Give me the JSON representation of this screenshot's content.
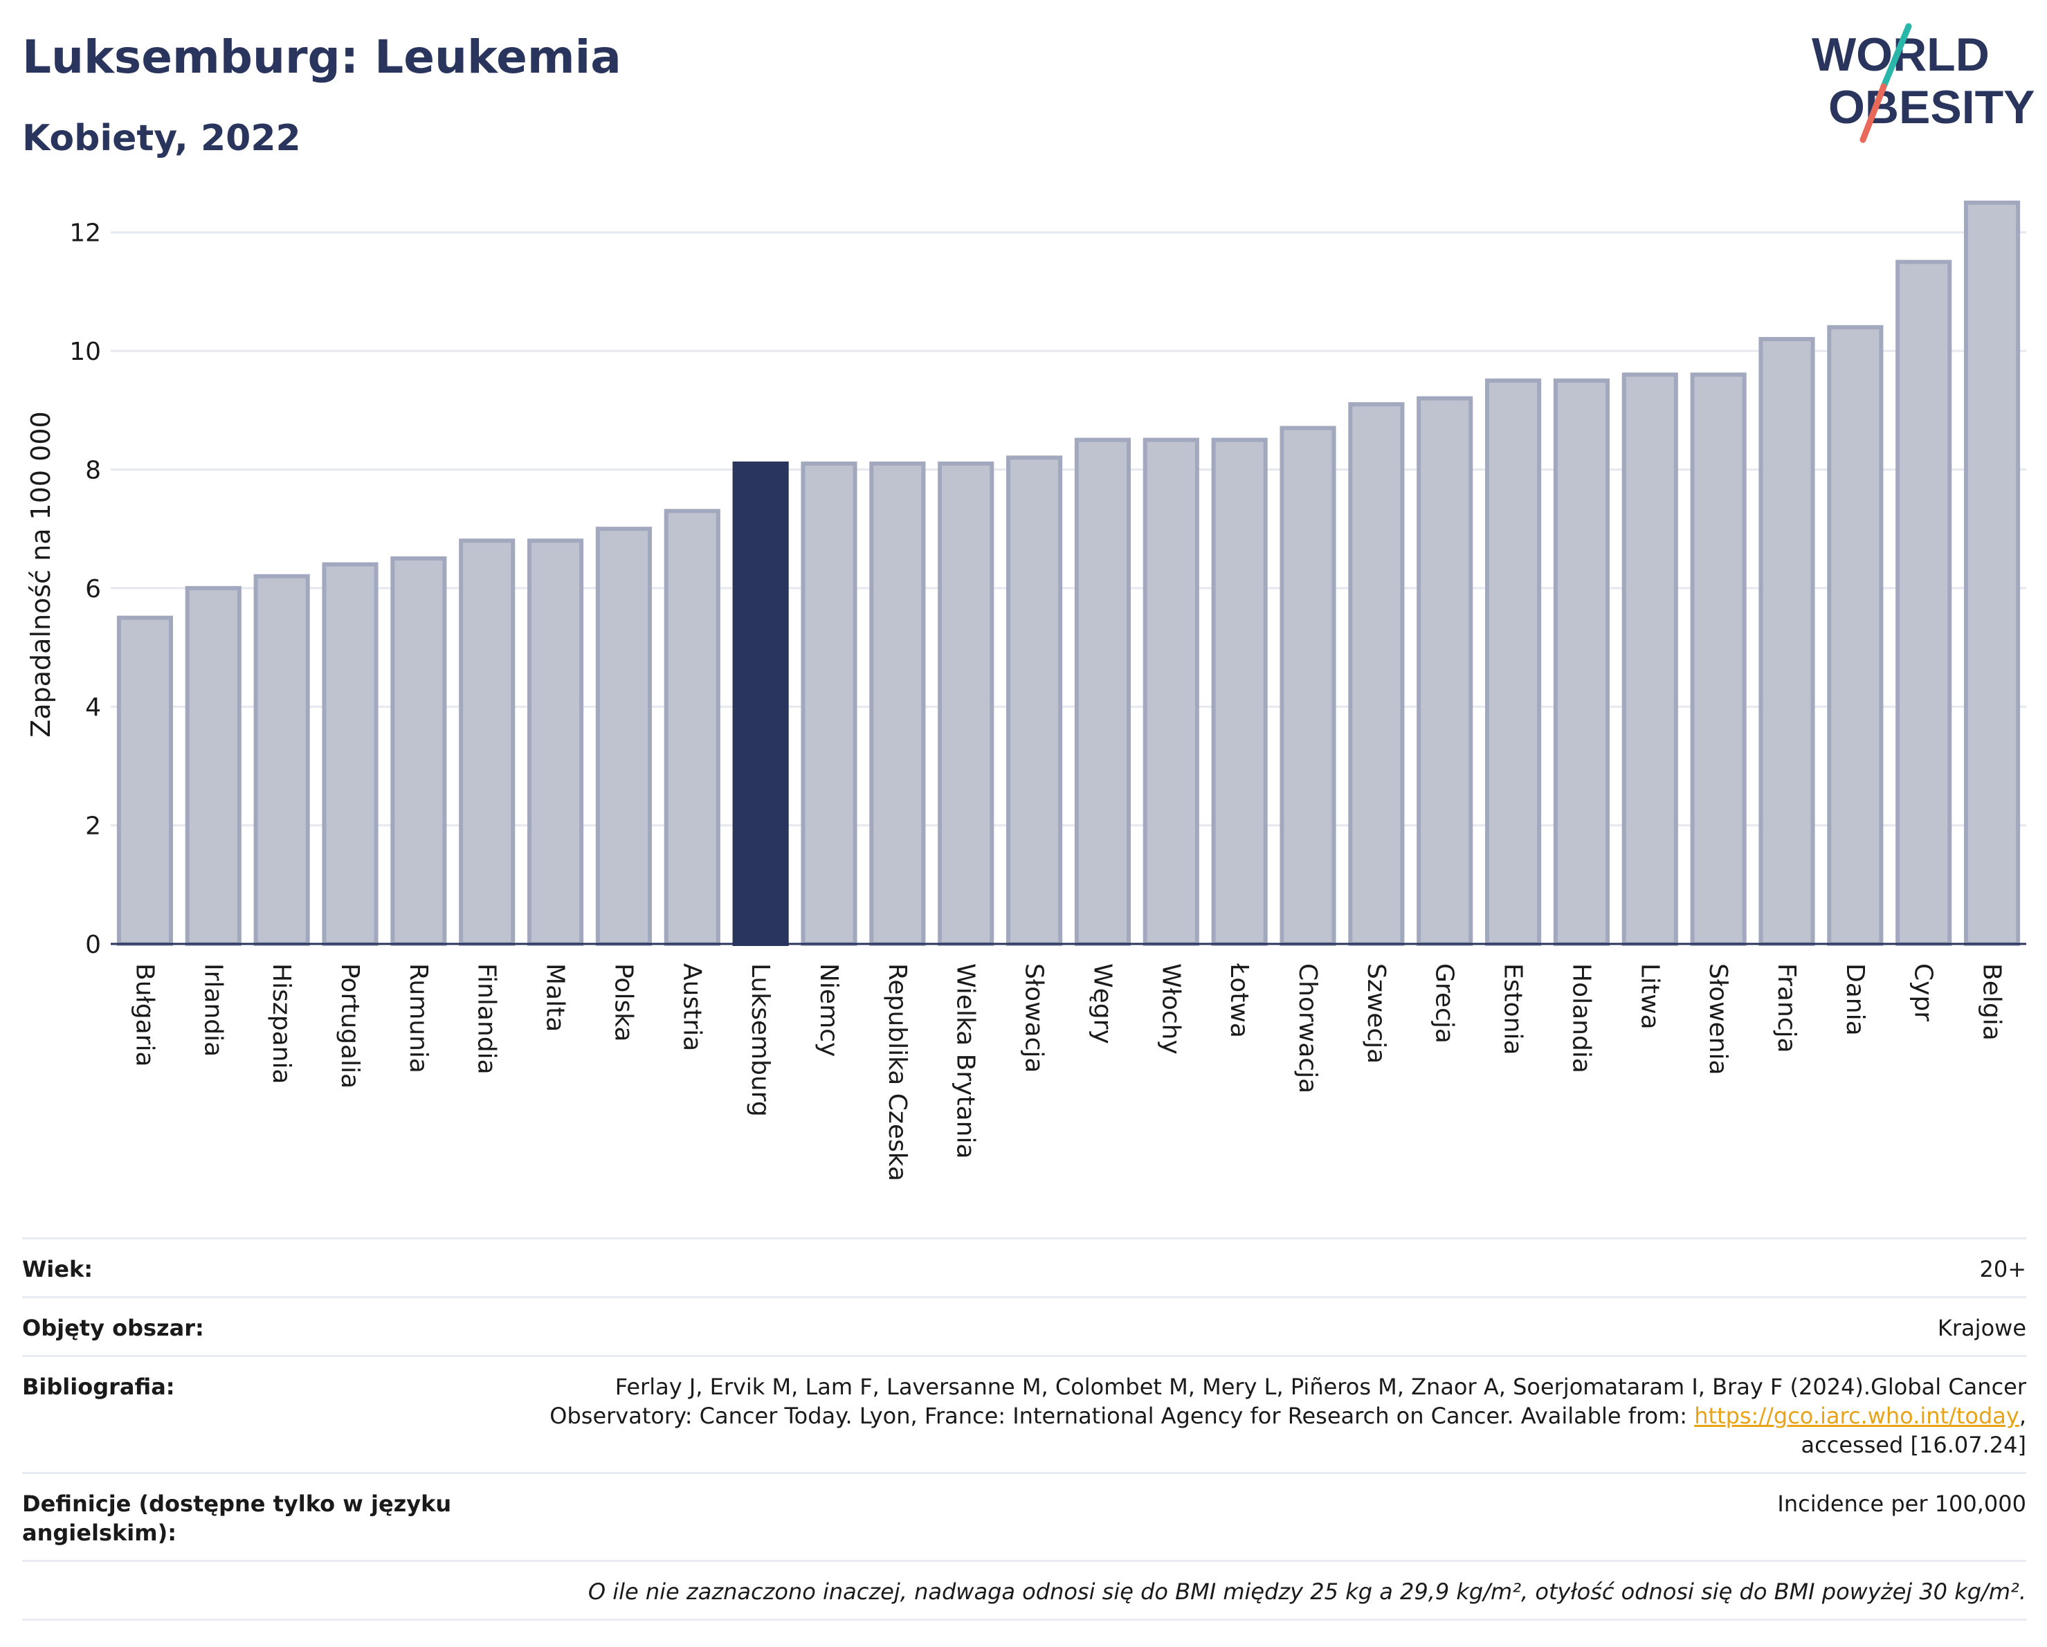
{
  "header": {
    "title": "Luksemburg: Leukemia",
    "subtitle": "Kobiety, 2022"
  },
  "logo": {
    "line1": "WORLD",
    "line2": "OBESITY",
    "colors": {
      "text": "#2a355d",
      "slash_top": "#2ab6a9",
      "slash_bottom": "#e8685a"
    }
  },
  "chart_data": {
    "type": "bar",
    "ylabel": "Zapadalność na 100 000",
    "xlabel": "",
    "ylim": [
      0,
      13
    ],
    "yticks": [
      0,
      2,
      4,
      6,
      8,
      10,
      12
    ],
    "grid": true,
    "categories": [
      "Bułgaria",
      "Irlandia",
      "Hiszpania",
      "Portugalia",
      "Rumunia",
      "Finlandia",
      "Malta",
      "Polska",
      "Austria",
      "Luksemburg",
      "Niemcy",
      "Republika Czeska",
      "Wielka Brytania",
      "Słowacja",
      "Węgry",
      "Włochy",
      "Łotwa",
      "Chorwacja",
      "Szwecja",
      "Grecja",
      "Estonia",
      "Holandia",
      "Litwa",
      "Słowenia",
      "Francja",
      "Dania",
      "Cypr",
      "Belgia"
    ],
    "values": [
      5.5,
      6.0,
      6.2,
      6.4,
      6.5,
      6.8,
      6.8,
      7.0,
      7.3,
      8.1,
      8.1,
      8.1,
      8.1,
      8.2,
      8.5,
      8.5,
      8.5,
      8.7,
      9.1,
      9.2,
      9.5,
      9.5,
      9.6,
      9.6,
      10.2,
      10.4,
      11.5,
      12.5
    ],
    "highlight": "Luksemburg",
    "colors": {
      "bar": "#bfc3d0",
      "bar_edge": "#a2a8bd",
      "highlight": "#2a355d",
      "grid": "#e6e8ef",
      "axis": "#2a355d"
    }
  },
  "info": {
    "age_label": "Wiek:",
    "age_value": "20+",
    "area_label": "Objęty obszar:",
    "area_value": "Krajowe",
    "biblio_label": "Bibliografia:",
    "biblio_text1": "Ferlay J, Ervik M, Lam F, Laversanne M, Colombet M, Mery L, Piñeros M, Znaor A, Soerjomataram I, Bray F (2024).Global Cancer",
    "biblio_text2": "Observatory: Cancer Today. Lyon, France: International Agency for Research on Cancer. Available from: ",
    "biblio_link": "https://gco.iarc.who.int/today",
    "biblio_text3": ",",
    "biblio_text4": "accessed [16.07.24]",
    "def_label": "Definicje (dostępne tylko w języku angielskim):",
    "def_value": "Incidence per 100,000",
    "note": "O ile nie zaznaczono inaczej, nadwaga odnosi się do BMI między 25 kg a 29,9 kg/m², otyłość odnosi się do BMI powyżej 30 kg/m²."
  }
}
